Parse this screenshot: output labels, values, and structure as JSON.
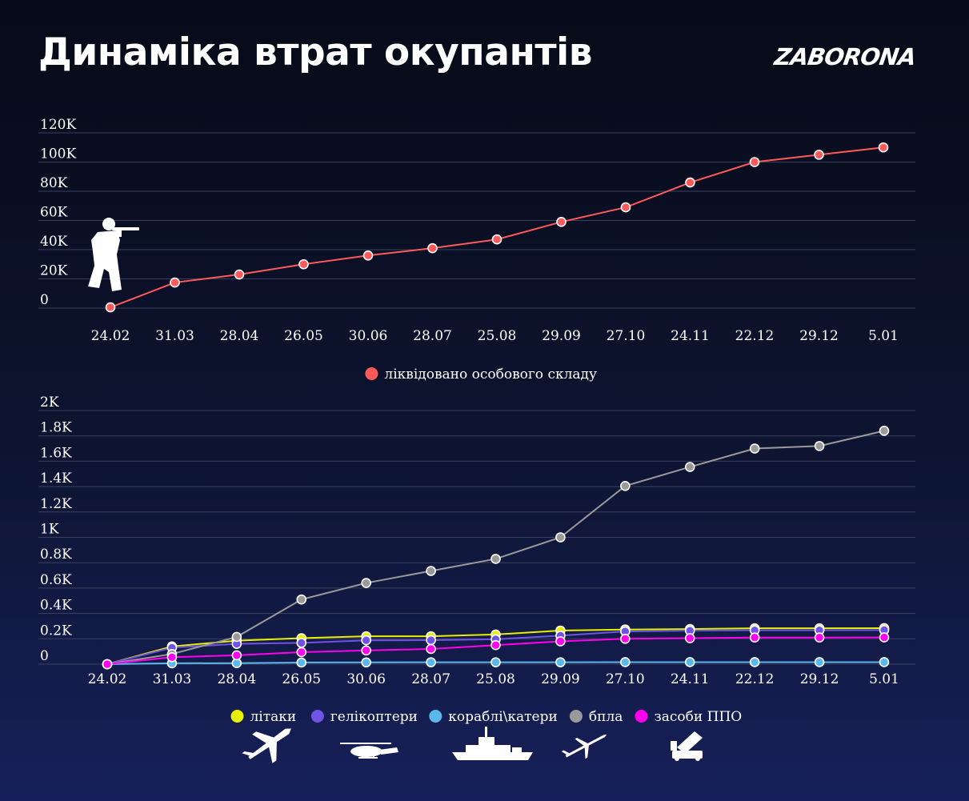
{
  "header": {
    "title": "Динаміка втрат окупантів",
    "logo": "ZABORONA"
  },
  "icons": {
    "top_chart": "soldier-icon",
    "bottom_chart": [
      "airplane-icon",
      "helicopter-icon",
      "warship-icon",
      "drone-icon",
      "air-defense-launcher-icon"
    ]
  },
  "chart_data": [
    {
      "type": "line",
      "categories": [
        "24.02",
        "31.03",
        "28.04",
        "26.05",
        "30.06",
        "28.07",
        "25.08",
        "29.09",
        "27.10",
        "24.11",
        "22.12",
        "29.12",
        "5.01"
      ],
      "y_ticks": [
        "0",
        "20K",
        "40K",
        "60K",
        "80K",
        "100K",
        "120K"
      ],
      "ylim": [
        0,
        120000
      ],
      "grid": true,
      "legend_position": "bottom-center",
      "series": [
        {
          "name": "ліквідовано особового складу",
          "color": "#ff5a5a",
          "values": [
            500,
            17500,
            23000,
            30000,
            36000,
            41000,
            47000,
            59000,
            69000,
            86000,
            100000,
            105000,
            110000
          ]
        }
      ]
    },
    {
      "type": "line",
      "categories": [
        "24.02",
        "31.03",
        "28.04",
        "26.05",
        "30.06",
        "28.07",
        "25.08",
        "29.09",
        "27.10",
        "24.11",
        "22.12",
        "29.12",
        "5.01"
      ],
      "y_ticks": [
        "0",
        "0.2K",
        "0.4K",
        "0.6K",
        "0.8K",
        "1K",
        "1.2K",
        "1.4K",
        "1.6K",
        "1.8K",
        "2K"
      ],
      "ylim": [
        0,
        2000
      ],
      "grid": true,
      "legend_position": "bottom-center",
      "series": [
        {
          "name": "літаки",
          "color": "#e6f000",
          "values": [
            0,
            140,
            185,
            205,
            220,
            220,
            234,
            265,
            273,
            277,
            283,
            283,
            284
          ]
        },
        {
          "name": "гелікоптери",
          "color": "#6f52e6",
          "values": [
            0,
            130,
            160,
            168,
            188,
            189,
            196,
            225,
            258,
            264,
            267,
            267,
            269
          ]
        },
        {
          "name": "кораблі\\катери",
          "color": "#5ab9ea",
          "values": [
            0,
            7,
            8,
            13,
            14,
            15,
            15,
            15,
            16,
            16,
            16,
            16,
            16
          ]
        },
        {
          "name": "бпла",
          "color": "#9a9a9a",
          "values": [
            0,
            80,
            215,
            510,
            640,
            735,
            830,
            1000,
            1405,
            1555,
            1700,
            1720,
            1840
          ]
        },
        {
          "name": "засоби ППО",
          "color": "#ff00ee",
          "values": [
            0,
            55,
            70,
            95,
            108,
            120,
            150,
            180,
            200,
            205,
            210,
            210,
            211
          ]
        }
      ]
    }
  ]
}
